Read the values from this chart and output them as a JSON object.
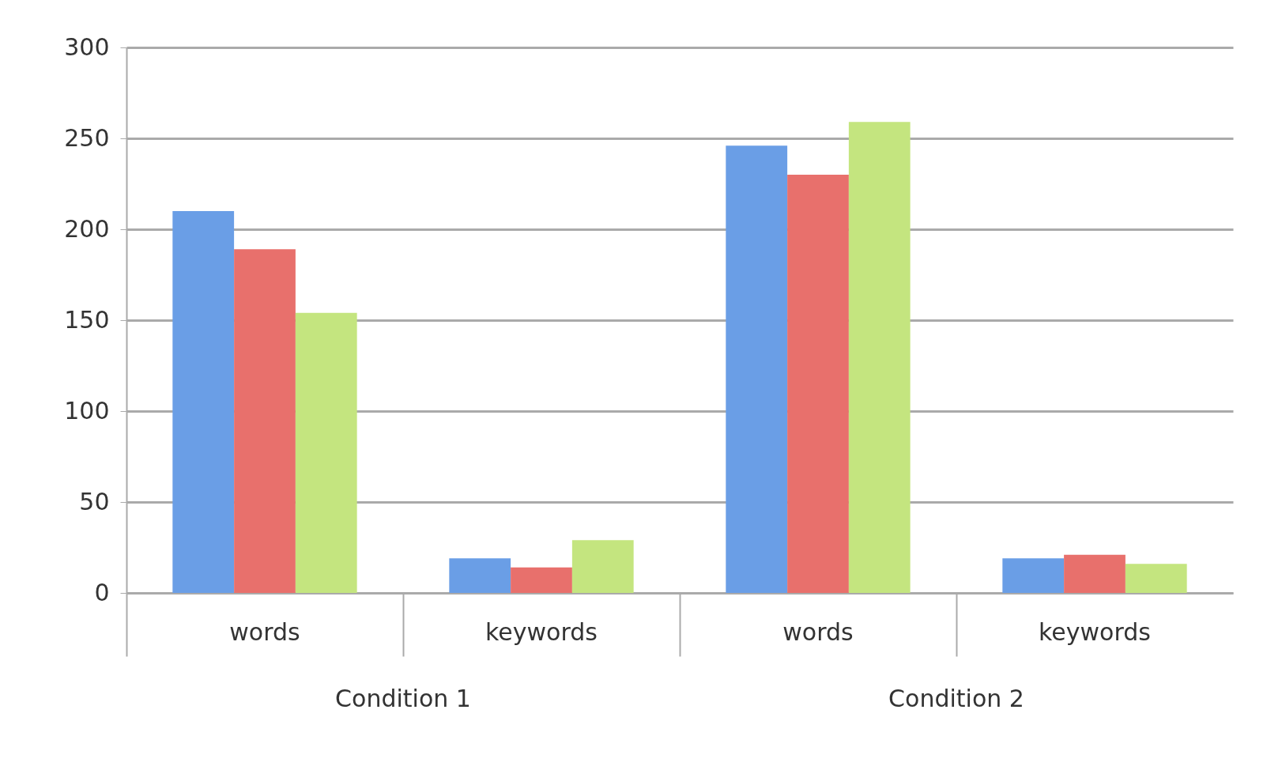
{
  "chart_data": {
    "type": "bar",
    "categories": [
      "words",
      "keywords",
      "words",
      "keywords"
    ],
    "series": [
      {
        "color": "#6a9ee6",
        "values": [
          210,
          19,
          246,
          19
        ]
      },
      {
        "color": "#e8706c",
        "values": [
          189,
          14,
          230,
          21
        ]
      },
      {
        "color": "#c4e57f",
        "values": [
          154,
          29,
          259,
          16
        ]
      }
    ],
    "ylim": [
      0,
      300
    ],
    "yticks": [
      0,
      50,
      100,
      150,
      200,
      250,
      300
    ],
    "grid": "y",
    "legend": false,
    "annotations": [
      "Condition 1",
      "Condition 2"
    ]
  }
}
